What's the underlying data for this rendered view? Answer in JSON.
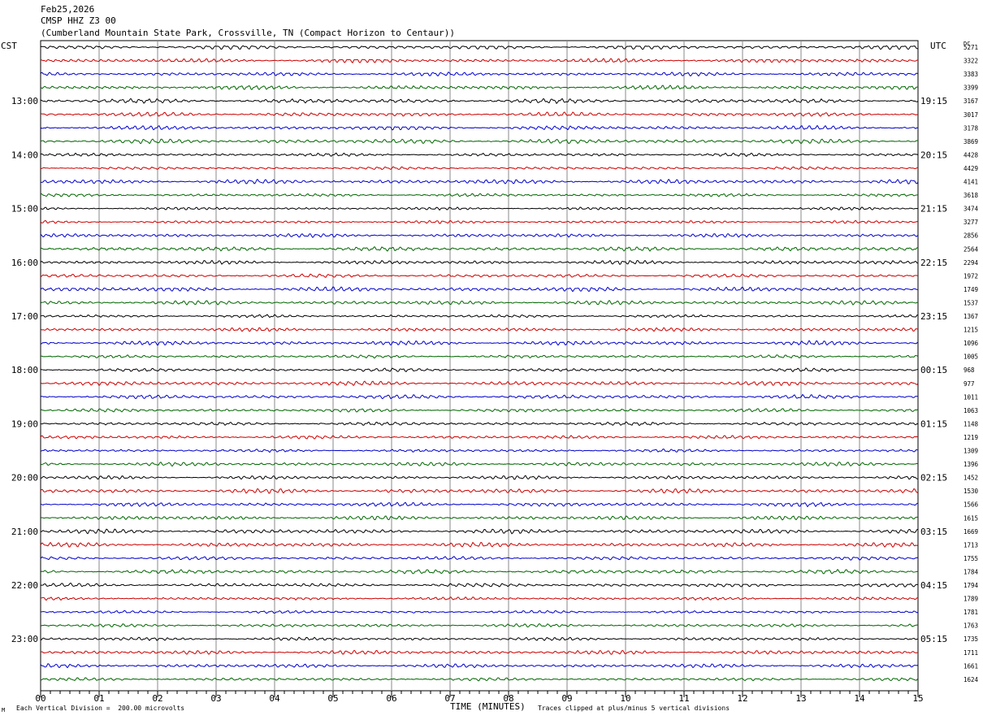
{
  "header": {
    "date": "Feb25,2026",
    "station": "CMSP HHZ Z3 00",
    "location": "(Cumberland Mountain State Park, Crossville, TN (Compact Horizon to Centaur))"
  },
  "left_timezone": "CST",
  "right_timezone": "UTC",
  "dc_header": "DC",
  "footer": {
    "scale": "Each Vertical Division =  200.00 microvolts",
    "x_axis_label": "TIME (MINUTES)",
    "clip_note": "Traces clipped at plus/minus 5 vertical divisions",
    "corner_mark": "M"
  },
  "colors": {
    "trace_cycle": [
      "#000000",
      "#cc0000",
      "#0000cc",
      "#006600"
    ],
    "grid": "#888888",
    "background": "#ffffff"
  },
  "chart_data": {
    "type": "line",
    "title": "CMSP HHZ Z3 00",
    "xlabel": "TIME (MINUTES)",
    "xlim": [
      0,
      15
    ],
    "x_ticks": [
      "00",
      "01",
      "02",
      "03",
      "04",
      "05",
      "06",
      "07",
      "08",
      "09",
      "10",
      "11",
      "12",
      "13",
      "14",
      "15"
    ],
    "minutes_per_line": 15,
    "trace_count": 48,
    "left_hour_labels": [
      {
        "trace": 4,
        "label": "13:00"
      },
      {
        "trace": 8,
        "label": "14:00"
      },
      {
        "trace": 12,
        "label": "15:00"
      },
      {
        "trace": 16,
        "label": "16:00"
      },
      {
        "trace": 20,
        "label": "17:00"
      },
      {
        "trace": 24,
        "label": "18:00"
      },
      {
        "trace": 28,
        "label": "19:00"
      },
      {
        "trace": 32,
        "label": "20:00"
      },
      {
        "trace": 36,
        "label": "21:00"
      },
      {
        "trace": 40,
        "label": "22:00"
      },
      {
        "trace": 44,
        "label": "23:00"
      }
    ],
    "right_hour_labels": [
      {
        "trace": 4,
        "label": "19:15"
      },
      {
        "trace": 8,
        "label": "20:15"
      },
      {
        "trace": 12,
        "label": "21:15"
      },
      {
        "trace": 16,
        "label": "22:15"
      },
      {
        "trace": 20,
        "label": "23:15"
      },
      {
        "trace": 24,
        "label": "00:15"
      },
      {
        "trace": 28,
        "label": "01:15"
      },
      {
        "trace": 32,
        "label": "02:15"
      },
      {
        "trace": 36,
        "label": "03:15"
      },
      {
        "trace": 40,
        "label": "04:15"
      },
      {
        "trace": 44,
        "label": "05:15"
      }
    ],
    "dc_offsets": [
      "5271",
      "3322",
      "3383",
      "3399",
      "3167",
      "3017",
      "3178",
      "3869",
      "4428",
      "4429",
      "4141",
      "3618",
      "3474",
      "3277",
      "2856",
      "2564",
      "2294",
      "1972",
      "1749",
      "1537",
      "1367",
      "1215",
      "1096",
      "1005",
      "968",
      "977",
      "1011",
      "1063",
      "1148",
      "1219",
      "1309",
      "1396",
      "1452",
      "1530",
      "1566",
      "1615",
      "1669",
      "1713",
      "1755",
      "1784",
      "1794",
      "1789",
      "1781",
      "1763",
      "1735",
      "1711",
      "1661",
      "1624"
    ],
    "noise_amplitude_divisions": 0.35,
    "clip_limit_divisions": 5
  }
}
